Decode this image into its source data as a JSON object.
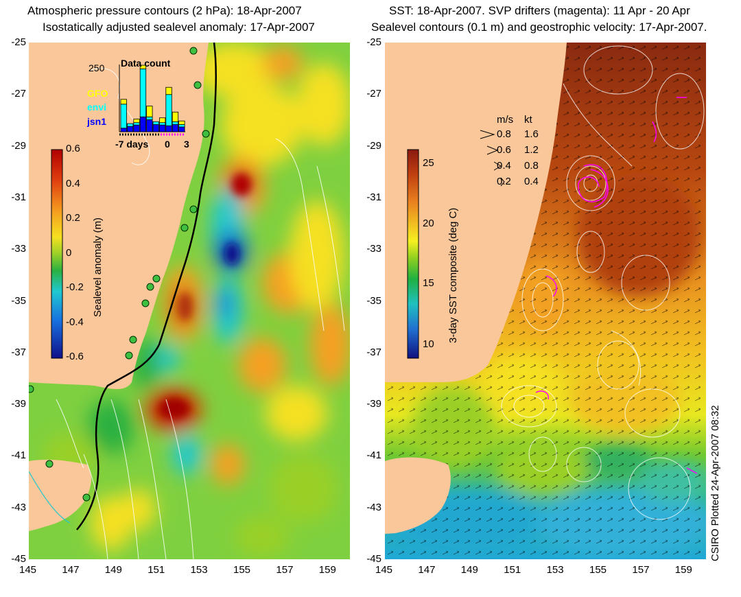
{
  "left_panel": {
    "title_line1": "Atmospheric pressure contours (2 hPa): 18-Apr-2007",
    "title_line2": "Isostatically adjusted sealevel anomaly: 17-Apr-2007",
    "colorbar": {
      "label": "Sealevel anomaly (m)",
      "ticks": [
        "0.6",
        "0.4",
        "0.2",
        "0",
        "-0.2",
        "-0.4",
        "-0.6"
      ],
      "colors": [
        "#b00000",
        "#e04010",
        "#f5a020",
        "#f5e020",
        "#9ad028",
        "#2ab040",
        "#20c8d0",
        "#1870e0",
        "#10108a"
      ]
    },
    "inset": {
      "title": "Data count",
      "y_max_label": "250",
      "x_labels": [
        "-7 days",
        "0",
        "3"
      ],
      "legend": [
        {
          "name": "GFO",
          "color": "#ffff00"
        },
        {
          "name": "envi",
          "color": "#00ffff"
        },
        {
          "name": "jsn1",
          "color": "#0000ff"
        }
      ],
      "chart_data": {
        "type": "bar",
        "title": "Data count",
        "x": [
          -7,
          -6,
          -5,
          -4,
          -3,
          -2,
          -1,
          0,
          1,
          2
        ],
        "series": [
          {
            "name": "jsn1",
            "values": [
              15,
              22,
              28,
              62,
              50,
              30,
              28,
              25,
              30,
              20
            ]
          },
          {
            "name": "envi",
            "values": [
              100,
              12,
              10,
              200,
              12,
              12,
              10,
              130,
              12,
              10
            ]
          },
          {
            "name": "GFO",
            "values": [
              20,
              0,
              15,
              15,
              45,
              0,
              20,
              30,
              40,
              15
            ]
          }
        ],
        "ylim": [
          0,
          280
        ]
      }
    }
  },
  "right_panel": {
    "title_line1": "SST: 18-Apr-2007. SVP drifters (magenta): 11 Apr - 20 Apr",
    "title_line2": "Sealevel contours (0.1 m) and geostrophic velocity: 17-Apr-2007.",
    "colorbar": {
      "label": "3-day SST composite (deg C)",
      "ticks": [
        "25",
        "20",
        "15",
        "10"
      ],
      "colors": [
        "#8a1a10",
        "#c04010",
        "#e88020",
        "#f2c020",
        "#f5f020",
        "#90d020",
        "#20b040",
        "#20c0c0",
        "#2070d0",
        "#101080"
      ]
    },
    "velocity_legend": {
      "header_ms": "m/s",
      "header_kt": "kt",
      "rows": [
        {
          "ms": "0.8",
          "kt": "1.6"
        },
        {
          "ms": "0.6",
          "kt": "1.2"
        },
        {
          "ms": "0.4",
          "kt": "0.8"
        },
        {
          "ms": "0.2",
          "kt": "0.4"
        }
      ]
    }
  },
  "y_ticks": [
    "-25",
    "-27",
    "-29",
    "-31",
    "-33",
    "-35",
    "-37",
    "-39",
    "-41",
    "-43",
    "-45"
  ],
  "x_ticks": [
    "145",
    "147",
    "149",
    "151",
    "153",
    "155",
    "157",
    "159"
  ],
  "footer": "CSIRO Plotted 24-Apr-2007 08:32",
  "colors": {
    "land": "#f9c79a",
    "ocean_left": "#7fd040",
    "coastline": "#000000",
    "contour": "#ffffff",
    "drifter": "#ff00ff",
    "station_marker": "#40c040"
  }
}
